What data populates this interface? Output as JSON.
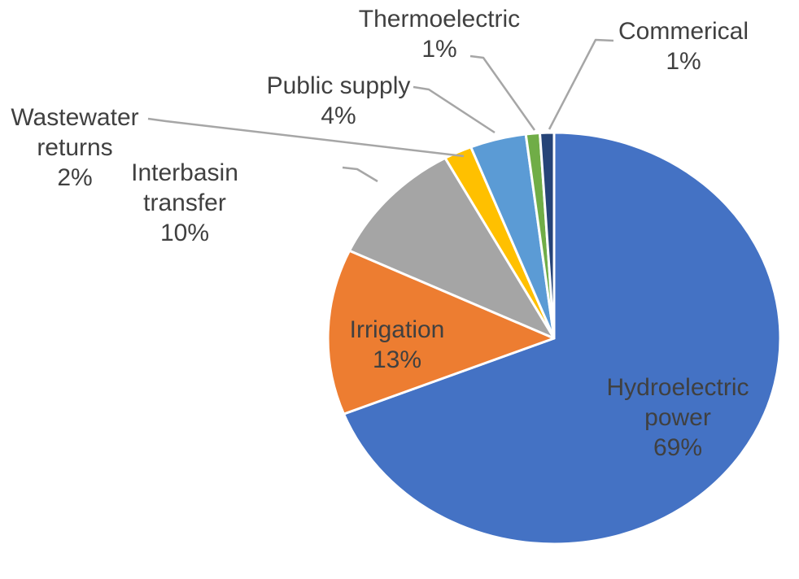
{
  "chart_data": {
    "type": "pie",
    "title": "",
    "unit": "percent of total",
    "categories": [
      "Hydroelectric power",
      "Irrigation",
      "Interbasin transfer",
      "Wastewater returns",
      "Public supply",
      "Thermoelectric",
      "Commerical"
    ],
    "values": [
      69,
      13,
      10,
      2,
      4,
      1,
      1
    ],
    "slices": [
      {
        "id": "hydroelectric-power",
        "label": "Hydroelectric power",
        "pct": 69,
        "pct_label": "69%",
        "color": "#4472C4",
        "label_placement": "inside"
      },
      {
        "id": "irrigation",
        "label": "Irrigation",
        "pct": 13,
        "pct_label": "13%",
        "color": "#ED7D31",
        "label_placement": "inside"
      },
      {
        "id": "interbasin-transfer",
        "label": "Interbasin transfer",
        "pct": 10,
        "pct_label": "10%",
        "color": "#A5A5A5",
        "label_placement": "outside"
      },
      {
        "id": "wastewater-returns",
        "label": "Wastewater returns",
        "pct": 2,
        "pct_label": "2%",
        "color": "#FFC000",
        "label_placement": "outside"
      },
      {
        "id": "public-supply",
        "label": "Public supply",
        "pct": 4,
        "pct_label": "4%",
        "color": "#5B9BD5",
        "label_placement": "outside"
      },
      {
        "id": "thermoelectric",
        "label": "Thermoelectric",
        "pct": 1,
        "pct_label": "1%",
        "color": "#70AD47",
        "label_placement": "outside"
      },
      {
        "id": "commerical",
        "label": "Commerical",
        "pct": 1,
        "pct_label": "1%",
        "color": "#264478",
        "label_placement": "outside"
      }
    ],
    "start_angle_deg": 0,
    "direction": "clockwise",
    "legend": "none",
    "grid": false,
    "background_color": "#FFFFFF",
    "label_color": "#404040",
    "leader_line_color": "#A6A6A6",
    "slice_border_color": "#FFFFFF"
  }
}
